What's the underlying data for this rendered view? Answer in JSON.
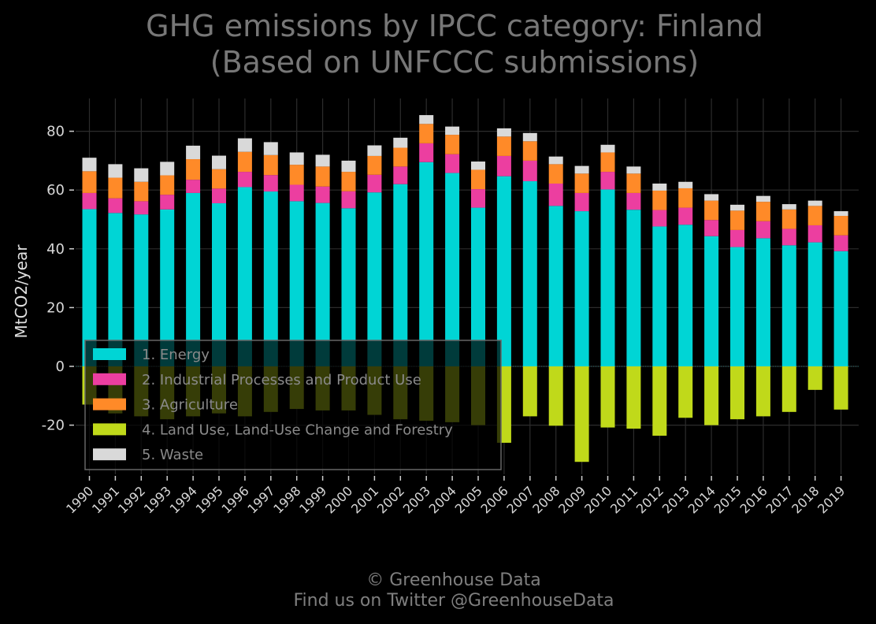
{
  "chart_data": {
    "type": "bar",
    "stacked": true,
    "title": "GHG emissions by IPCC category: Finland",
    "subtitle": "(Based on UNFCCC submissions)",
    "ylabel": "MtCO2/year",
    "xlabel": "",
    "ylim": [
      -35,
      92
    ],
    "yticks": [
      -20,
      0,
      20,
      40,
      60,
      80
    ],
    "grid": true,
    "legend_position": "lower-left",
    "categories": [
      "1990",
      "1991",
      "1992",
      "1993",
      "1994",
      "1995",
      "1996",
      "1997",
      "1998",
      "1999",
      "2000",
      "2001",
      "2002",
      "2003",
      "2004",
      "2005",
      "2006",
      "2007",
      "2008",
      "2009",
      "2010",
      "2011",
      "2012",
      "2013",
      "2014",
      "2015",
      "2016",
      "2017",
      "2018",
      "2019"
    ],
    "series": [
      {
        "name": "1. Energy",
        "color": "#00d5d5",
        "values": [
          53.5,
          52.2,
          51.7,
          53.4,
          59.0,
          55.5,
          61.0,
          59.5,
          56.2,
          55.6,
          53.8,
          59.2,
          62.0,
          69.5,
          65.8,
          54.0,
          64.7,
          63.0,
          54.6,
          52.8,
          60.2,
          53.3,
          47.6,
          48.2,
          44.3,
          40.6,
          43.6,
          41.2,
          42.2,
          39.2
        ]
      },
      {
        "name": "2. Industrial Processes and Product Use",
        "color": "#ec3ea0",
        "values": [
          5.5,
          5.0,
          4.5,
          5.0,
          4.5,
          5.0,
          5.2,
          5.6,
          5.6,
          5.6,
          5.8,
          6.0,
          6.0,
          6.4,
          6.4,
          6.3,
          6.9,
          7.0,
          7.6,
          6.2,
          6.0,
          5.7,
          5.6,
          5.8,
          5.5,
          5.8,
          5.8,
          5.6,
          5.8,
          5.4
        ]
      },
      {
        "name": "3. Agriculture",
        "color": "#ff8a28",
        "values": [
          7.4,
          7.0,
          6.6,
          6.6,
          7.0,
          6.6,
          6.8,
          6.8,
          6.8,
          6.8,
          6.6,
          6.4,
          6.4,
          6.6,
          6.6,
          6.6,
          6.6,
          6.6,
          6.6,
          6.6,
          6.6,
          6.6,
          6.6,
          6.6,
          6.6,
          6.6,
          6.6,
          6.6,
          6.6,
          6.6
        ]
      },
      {
        "name": "4. Land Use, Land-Use Change and Forestry",
        "color": "#c0d91a",
        "values": [
          -13.0,
          -16.0,
          -17.0,
          -18.0,
          -17.0,
          -16.0,
          -17.0,
          -15.5,
          -14.5,
          -15.0,
          -15.0,
          -16.5,
          -18.0,
          -18.5,
          -19.0,
          -20.0,
          -26.0,
          -17.0,
          -20.2,
          -32.5,
          -20.8,
          -21.2,
          -23.6,
          -17.5,
          -20.0,
          -18.0,
          -17.0,
          -15.5,
          -8.0,
          -14.7
        ]
      },
      {
        "name": "5. Waste",
        "color": "#d9d9d9",
        "values": [
          4.6,
          4.6,
          4.6,
          4.6,
          4.6,
          4.6,
          4.6,
          4.4,
          4.2,
          4.0,
          3.8,
          3.6,
          3.4,
          3.0,
          2.8,
          2.8,
          2.8,
          2.8,
          2.6,
          2.6,
          2.6,
          2.4,
          2.4,
          2.2,
          2.2,
          2.0,
          2.0,
          1.8,
          1.8,
          1.6
        ]
      }
    ]
  },
  "credits": {
    "line1": "© Greenhouse Data",
    "line2": "Find us on Twitter @GreenhouseData"
  }
}
